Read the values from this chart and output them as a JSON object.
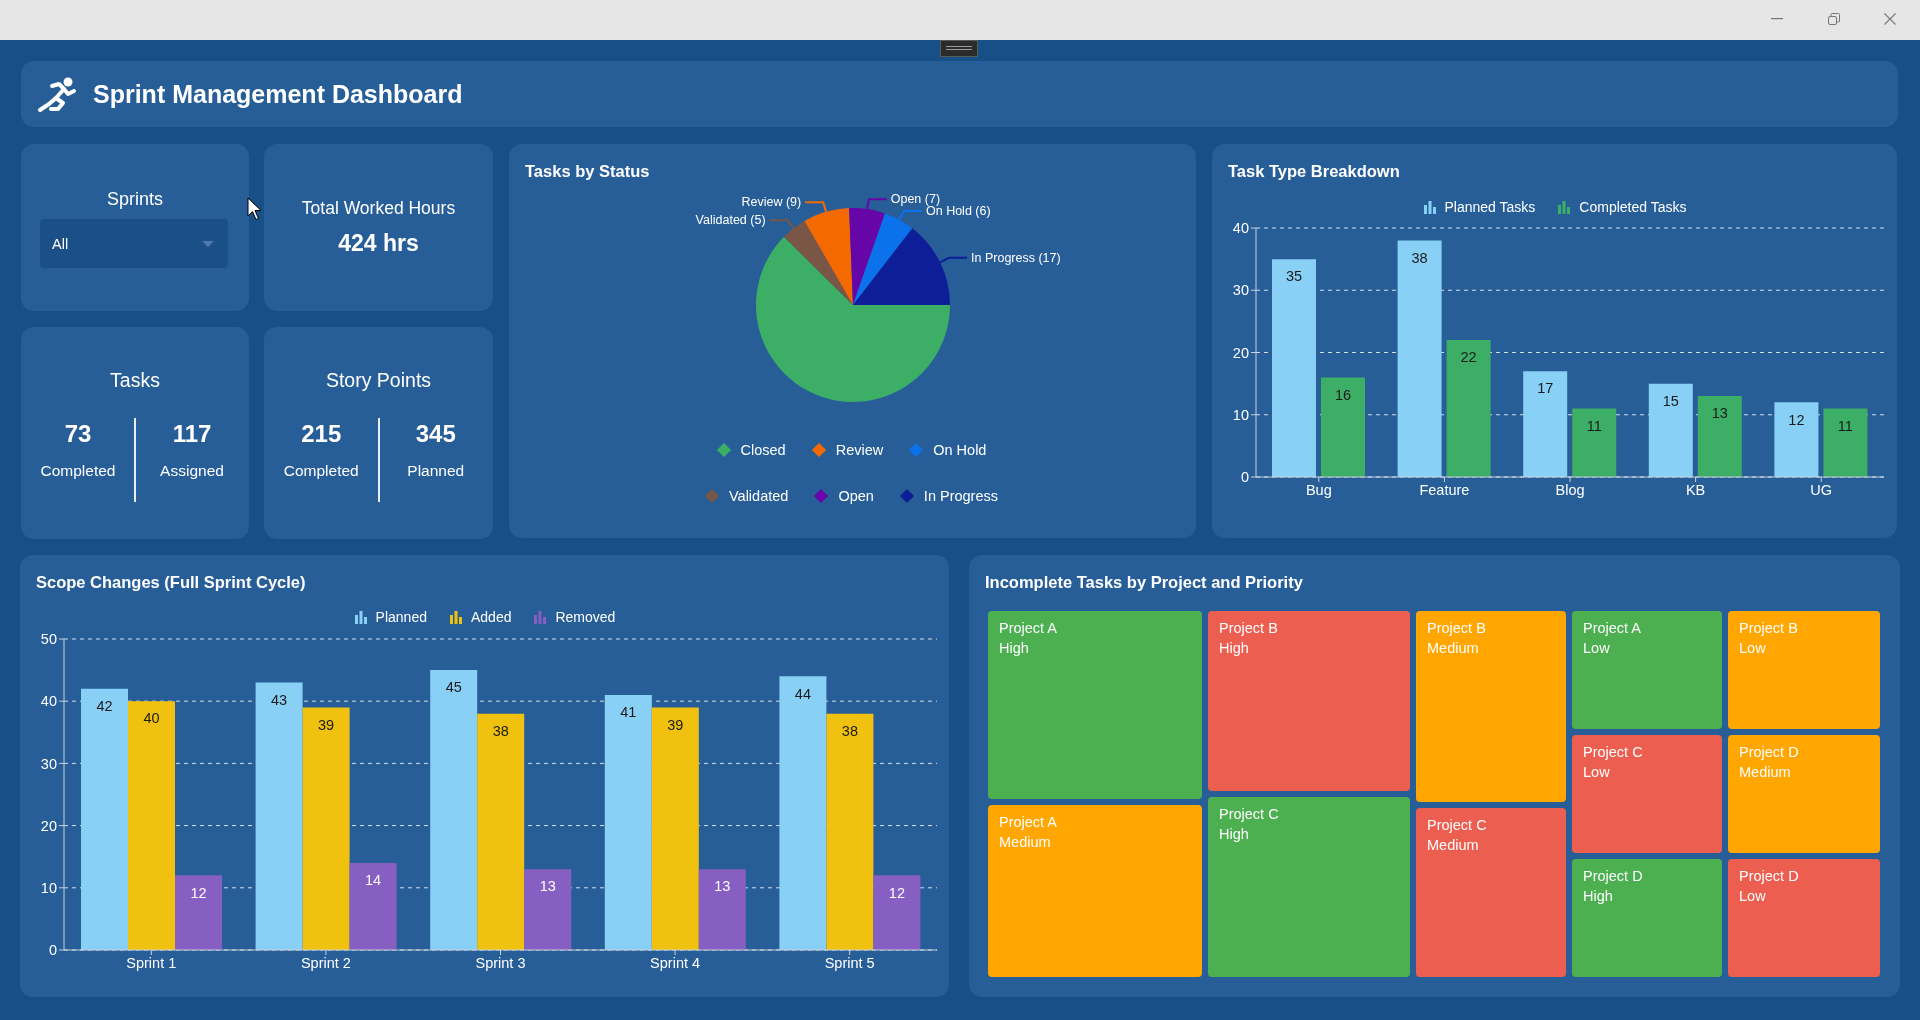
{
  "chart_data": [
    {
      "type": "other",
      "title": "Sprint Management Dashboard"
    },
    {
      "type": "other",
      "title": "Sprints",
      "annotations": [
        "All"
      ]
    },
    {
      "type": "other",
      "title": "Total Worked Hours",
      "annotations": [
        "424 hrs"
      ]
    },
    {
      "type": "other",
      "title": "Tasks",
      "categories": [
        "Completed",
        "Assigned"
      ],
      "values": [
        73,
        117
      ],
      "data_labels": true
    },
    {
      "type": "other",
      "title": "Story Points",
      "categories": [
        "Completed",
        "Planned"
      ],
      "values": [
        215,
        345
      ],
      "data_labels": true
    },
    {
      "type": "pie",
      "title": "Tasks by Status",
      "categories": [
        "Closed",
        "Validated",
        "Review",
        "Open",
        "On Hold",
        "In Progress"
      ],
      "values": [
        73,
        5,
        9,
        7,
        6,
        17
      ],
      "colors": [
        "#3cae66",
        "#7a5646",
        "#f56a00",
        "#6606a8",
        "#0b72ec",
        "#0e1e98"
      ],
      "value_labels": [
        null,
        "Validated (5)",
        "Review (9)",
        "Open (7)",
        "On Hold (6)",
        "In Progress (17)"
      ],
      "legend": "bottom"
    },
    {
      "type": "bar",
      "title": "Task Type Breakdown",
      "categories": [
        "Bug",
        "Feature",
        "Blog",
        "KB",
        "UG"
      ],
      "series": [
        {
          "name": "Planned Tasks",
          "color": "#88d0f5",
          "values": [
            35,
            38,
            17,
            15,
            12
          ]
        },
        {
          "name": "Completed Tasks",
          "color": "#3cae66",
          "values": [
            16,
            22,
            11,
            13,
            11
          ]
        }
      ],
      "ylim": [
        0,
        40
      ],
      "yticks": [
        0,
        10,
        20,
        30,
        40
      ],
      "grid": "y",
      "legend": "top",
      "data_labels": true
    },
    {
      "type": "bar",
      "title": "Scope Changes (Full Sprint Cycle)",
      "categories": [
        "Sprint 1",
        "Sprint 2",
        "Sprint 3",
        "Sprint 4",
        "Sprint 5"
      ],
      "series": [
        {
          "name": "Planned",
          "color": "#88d0f5",
          "values": [
            42,
            43,
            45,
            41,
            44
          ]
        },
        {
          "name": "Added",
          "color": "#f0c20f",
          "values": [
            40,
            39,
            38,
            39,
            38
          ]
        },
        {
          "name": "Removed",
          "color": "#875fc3",
          "values": [
            12,
            14,
            13,
            13,
            12
          ]
        }
      ],
      "ylim": [
        0,
        50
      ],
      "yticks": [
        0,
        10,
        20,
        30,
        40,
        50
      ],
      "grid": "y",
      "legend": "top",
      "data_labels": true
    },
    {
      "type": "other",
      "title": "Incomplete Tasks by Project and Priority",
      "categories": [
        "Project A\nHigh",
        "Project A\nMedium",
        "Project B\nHigh",
        "Project C\nHigh",
        "Project B\nMedium",
        "Project C\nMedium",
        "Project A\nLow",
        "Project C\nLow",
        "Project D\nHigh",
        "Project B\nLow",
        "Project D\nMedium",
        "Project D\nLow"
      ],
      "colors": [
        "#4caf50",
        "#ffa600",
        "#ec5e50",
        "#4caf50",
        "#ffa600",
        "#ec5e50",
        "#4caf50",
        "#ec5e50",
        "#4caf50",
        "#ffa600",
        "#ffa600",
        "#ec5e50"
      ]
    }
  ]
}
